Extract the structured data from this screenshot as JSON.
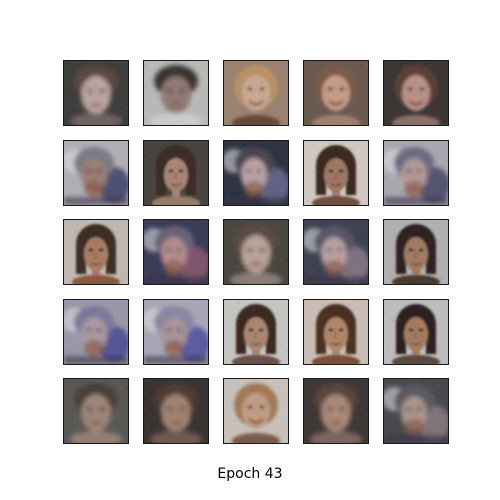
{
  "figure": {
    "caption": "Epoch 43",
    "rows": 5,
    "cols": 5
  },
  "samples": [
    {
      "type": "blurry-light",
      "bg": "#3e3e3c",
      "skin": "#b9a4a2",
      "hair": "#5a4a40",
      "accent": "#7a6a6a"
    },
    {
      "type": "blurry-light",
      "bg": "#b8b8b6",
      "skin": "#8f7a72",
      "hair": "#3a3430",
      "accent": "#d0d0d0"
    },
    {
      "type": "smiling-blonde",
      "bg": "#9a8270",
      "skin": "#c8a890",
      "hair": "#b89068",
      "accent": "#6a4a38"
    },
    {
      "type": "smiling-blonde",
      "bg": "#6a5a52",
      "skin": "#c49a88",
      "hair": "#7a5a48",
      "accent": "#a08070"
    },
    {
      "type": "smiling-blonde",
      "bg": "#3c3634",
      "skin": "#b89088",
      "hair": "#5a4038",
      "accent": "#8a7068"
    },
    {
      "type": "blurry-blue",
      "bg": "#b0aeb4",
      "skin": "#9a7e74",
      "hair": "#7c7a86",
      "accent": "#3c3e68"
    },
    {
      "type": "dark-hair",
      "bg": "#4a4440",
      "skin": "#a88474",
      "hair": "#3a2e28",
      "accent": "#9a7a68"
    },
    {
      "type": "blurry-blue",
      "bg": "#2e3440",
      "skin": "#bba2a4",
      "hair": "#4a4650",
      "accent": "#6a6a90"
    },
    {
      "type": "dark-hair",
      "bg": "#d0c8c0",
      "skin": "#9c7864",
      "hair": "#3a2a22",
      "accent": "#705040"
    },
    {
      "type": "blurry-blue",
      "bg": "#a8a8b0",
      "skin": "#b09a98",
      "hair": "#6a6a80",
      "accent": "#444468"
    },
    {
      "type": "dark-hair",
      "bg": "#c0b8b0",
      "skin": "#a87c64",
      "hair": "#3c2e26",
      "accent": "#8a5a40"
    },
    {
      "type": "blurry-blue",
      "bg": "#3a3c58",
      "skin": "#b48c8c",
      "hair": "#6a6478",
      "accent": "#8a5a70"
    },
    {
      "type": "blurry-light",
      "bg": "#4a4640",
      "skin": "#b8a29a",
      "hair": "#5a4c44",
      "accent": "#9a8a82"
    },
    {
      "type": "blurry-blue",
      "bg": "#3e4252",
      "skin": "#b8a0a0",
      "hair": "#5a5668",
      "accent": "#8a7a88"
    },
    {
      "type": "dark-hair",
      "bg": "#b0b0b0",
      "skin": "#a07a62",
      "hair": "#2e2420",
      "accent": "#4a3a30"
    },
    {
      "type": "blurry-blue",
      "bg": "#9a98a8",
      "skin": "#a89aa0",
      "hair": "#7a7898",
      "accent": "#4a4a90"
    },
    {
      "type": "blurry-blue",
      "bg": "#a8a6b4",
      "skin": "#a8949a",
      "hair": "#8a86a4",
      "accent": "#5050a0"
    },
    {
      "type": "dark-hair",
      "bg": "#c4c4c2",
      "skin": "#aa8670",
      "hair": "#3a2a22",
      "accent": "#6a5048"
    },
    {
      "type": "dark-hair",
      "bg": "#c8bcb4",
      "skin": "#b08468",
      "hair": "#4a3020",
      "accent": "#7a5038"
    },
    {
      "type": "dark-hair",
      "bg": "#bcbcbc",
      "skin": "#a47a60",
      "hair": "#2c2220",
      "accent": "#5a4a40"
    },
    {
      "type": "blurry-light",
      "bg": "#5a5854",
      "skin": "#9c8478",
      "hair": "#4a4038",
      "accent": "#a08a7c"
    },
    {
      "type": "blurry-light",
      "bg": "#3a3432",
      "skin": "#a08272",
      "hair": "#4e3e36",
      "accent": "#7a6458"
    },
    {
      "type": "smiling-blonde",
      "bg": "#c8c0ba",
      "skin": "#c09c84",
      "hair": "#a07a58",
      "accent": "#7a5a48"
    },
    {
      "type": "blurry-light",
      "bg": "#3e3836",
      "skin": "#a88878",
      "hair": "#5a443a",
      "accent": "#8a7468"
    },
    {
      "type": "blurry-blue",
      "bg": "#4a4a4e",
      "skin": "#a89488",
      "hair": "#5c5a62",
      "accent": "#8a7a80"
    }
  ]
}
